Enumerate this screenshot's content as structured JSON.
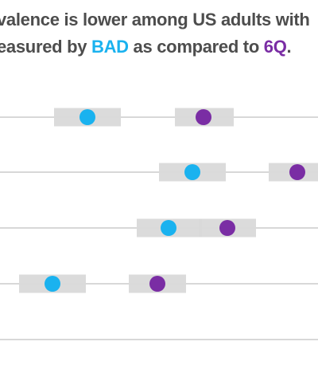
{
  "title": {
    "line1": "valence is lower among US adults with",
    "line2_prefix": "easured by ",
    "line2_bad": "BAD",
    "line2_middle": " as compared to ",
    "line2_6q": "6Q",
    "line2_suffix": "."
  },
  "colors": {
    "bad": "#1ab2ef",
    "sixq": "#7a2da4",
    "ci_band": "#d9d9d9",
    "gridline": "#cccccc",
    "title_text": "#4d4d4d"
  },
  "chart_data": {
    "type": "scatter",
    "title": "valence is lower among US adults with / easured by BAD as compared to 6Q.",
    "grid": true,
    "x_scale": "unlabeled",
    "xlim": [
      0,
      100
    ],
    "rows": [
      {
        "bad": {
          "value": 27.5,
          "ci": [
            17,
            38
          ]
        },
        "sixq": {
          "value": 64,
          "ci": [
            55,
            73.5
          ]
        }
      },
      {
        "bad": {
          "value": 60.5,
          "ci": [
            50,
            71
          ]
        },
        "sixq": {
          "value": 93.5,
          "ci": [
            84.5,
            100
          ]
        }
      },
      {
        "bad": {
          "value": 53,
          "ci": [
            43,
            63.5
          ]
        },
        "sixq": {
          "value": 71.5,
          "ci": [
            62.5,
            80.5
          ]
        }
      },
      {
        "bad": {
          "value": 16.5,
          "ci": [
            6,
            27
          ]
        },
        "sixq": {
          "value": 49.5,
          "ci": [
            40.5,
            58.5
          ]
        }
      }
    ],
    "series": [
      {
        "key": "bad",
        "legend_in_title": "BAD"
      },
      {
        "key": "sixq",
        "legend_in_title": "6Q"
      }
    ]
  }
}
